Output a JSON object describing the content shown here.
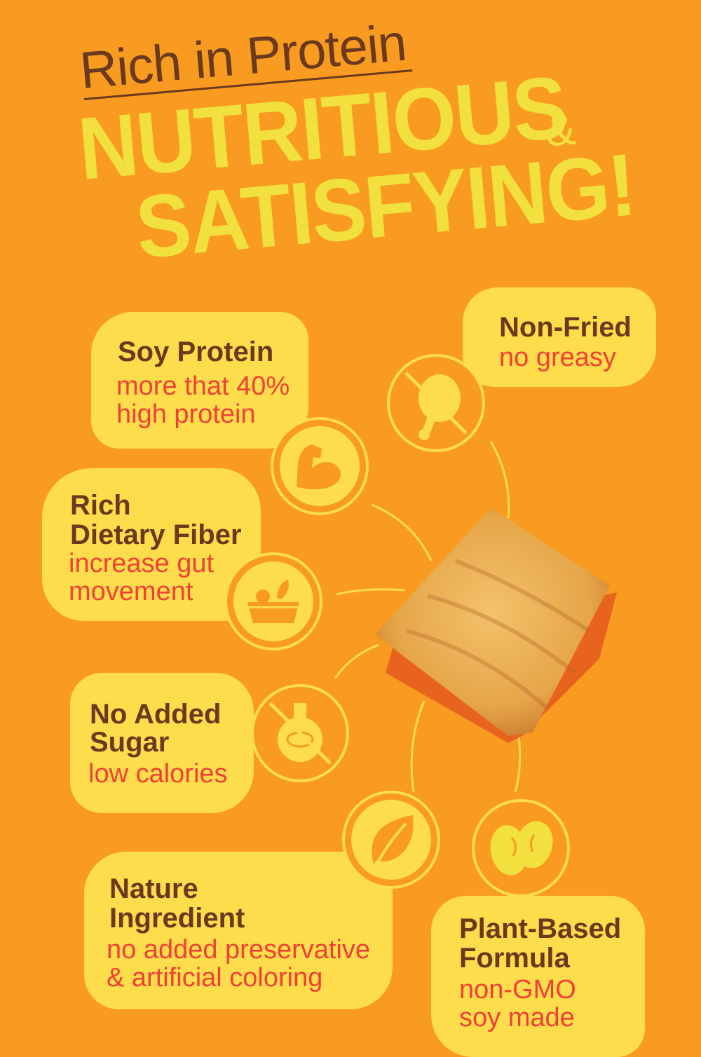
{
  "header": {
    "subtitle": "Rich in Protein",
    "line1": "NUTRITIOUS",
    "amp": "&",
    "line2": "SATISFYING!"
  },
  "colors": {
    "background": "#F89B20",
    "headline": "#F2E03E",
    "bubble": "#FDDD4C",
    "title_text": "#6B3A1E",
    "sub_text": "#EF4136",
    "chip_shadow": "#E8641E"
  },
  "features": [
    {
      "title": "Soy Protein",
      "lines": [
        "more that 40%",
        "high protein"
      ],
      "icon": "flexed-arm-icon"
    },
    {
      "title": "Non-Fried",
      "lines": [
        "no greasy"
      ],
      "icon": "no-fried-chicken-icon"
    },
    {
      "title_lines": [
        "Rich",
        "Dietary Fiber"
      ],
      "lines": [
        "increase gut",
        "movement"
      ],
      "icon": "vegetable-bowl-icon"
    },
    {
      "title_lines": [
        "No Added",
        "Sugar"
      ],
      "lines": [
        "low calories"
      ],
      "icon": "no-sugar-candy-icon"
    },
    {
      "title_lines": [
        "Nature",
        "Ingredient"
      ],
      "lines": [
        "no added preservative",
        "& artificial coloring"
      ],
      "icon": "leaf-icon"
    },
    {
      "title_lines": [
        "Plant-Based",
        "Formula"
      ],
      "lines": [
        "non-GMO",
        "soy made"
      ],
      "icon": "soybean-icon"
    }
  ]
}
